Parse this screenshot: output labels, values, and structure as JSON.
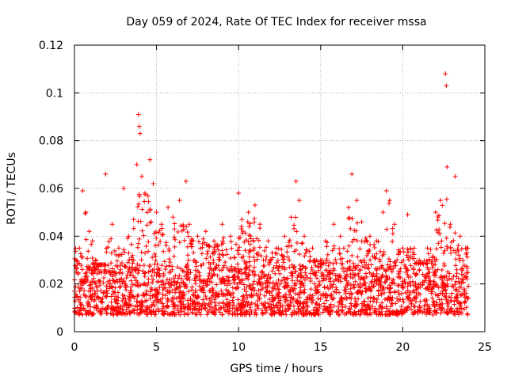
{
  "chart_data": {
    "type": "scatter",
    "title": "Day 059 of 2024, Rate Of TEC Index for receiver mssa",
    "xlabel": "GPS time / hours",
    "ylabel": "ROTI / TECUs",
    "xlim": [
      0,
      25
    ],
    "ylim": [
      0,
      0.12
    ],
    "grid": true,
    "xticks": [
      0,
      5,
      10,
      15,
      20,
      25
    ],
    "yticks": [
      0,
      0.02,
      0.04,
      0.06,
      0.08,
      0.1,
      0.12
    ],
    "xtick_labels": [
      "0",
      "5",
      "10",
      "15",
      "20",
      "25"
    ],
    "ytick_labels": [
      "0",
      "0.02",
      "0.04",
      "0.06",
      "0.08",
      "0.1",
      "0.12"
    ],
    "marker": "+",
    "color": "#ff0000",
    "series": [
      {
        "name": "ROTI",
        "x": [
          0.1,
          0.3,
          0.5,
          0.7,
          0.9,
          1.1,
          1.3,
          1.5,
          1.9,
          2.3,
          2.7,
          3.0,
          3.3,
          3.6,
          3.8,
          3.9,
          3.95,
          4.0,
          4.1,
          4.3,
          4.6,
          4.8,
          5.0,
          5.3,
          5.7,
          6.0,
          6.4,
          6.8,
          7.0,
          7.5,
          8.0,
          8.5,
          9.0,
          9.5,
          10.0,
          10.2,
          10.6,
          11.0,
          11.3,
          11.8,
          12.3,
          12.8,
          13.2,
          13.5,
          13.7,
          14.0,
          14.5,
          15.0,
          15.3,
          15.8,
          16.2,
          16.7,
          16.9,
          17.2,
          17.5,
          18.0,
          18.4,
          18.8,
          19.0,
          19.2,
          19.5,
          20.0,
          20.3,
          20.7,
          21.0,
          21.5,
          22.0,
          22.3,
          22.6,
          22.65,
          22.7,
          22.9,
          23.2,
          23.5,
          23.9
        ],
        "values": [
          0.03,
          0.035,
          0.059,
          0.05,
          0.042,
          0.038,
          0.03,
          0.028,
          0.066,
          0.045,
          0.035,
          0.06,
          0.04,
          0.047,
          0.07,
          0.091,
          0.086,
          0.083,
          0.065,
          0.058,
          0.072,
          0.062,
          0.05,
          0.045,
          0.052,
          0.048,
          0.055,
          0.063,
          0.045,
          0.04,
          0.042,
          0.038,
          0.045,
          0.04,
          0.058,
          0.047,
          0.05,
          0.053,
          0.045,
          0.038,
          0.035,
          0.04,
          0.048,
          0.063,
          0.055,
          0.04,
          0.035,
          0.03,
          0.038,
          0.045,
          0.04,
          0.052,
          0.066,
          0.055,
          0.046,
          0.04,
          0.038,
          0.05,
          0.059,
          0.055,
          0.045,
          0.035,
          0.049,
          0.035,
          0.03,
          0.035,
          0.05,
          0.055,
          0.108,
          0.103,
          0.069,
          0.045,
          0.065,
          0.04,
          0.035
        ]
      }
    ],
    "band": {
      "description": "dense cloud of ROTI samples throughout the day",
      "low": 0.007,
      "high": 0.028,
      "x_start": 0,
      "x_end": 24
    }
  }
}
